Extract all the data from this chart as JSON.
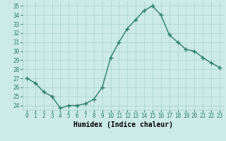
{
  "x": [
    0,
    1,
    2,
    3,
    4,
    5,
    6,
    7,
    8,
    9,
    10,
    11,
    12,
    13,
    14,
    15,
    16,
    17,
    18,
    19,
    20,
    21,
    22,
    23
  ],
  "y": [
    27.0,
    26.5,
    25.5,
    25.0,
    23.7,
    24.0,
    24.0,
    24.2,
    24.7,
    26.0,
    29.3,
    31.0,
    32.5,
    33.5,
    34.5,
    35.0,
    34.0,
    31.8,
    31.0,
    30.2,
    30.0,
    29.3,
    28.7,
    28.2
  ],
  "line_color": "#2e7d6e",
  "marker": "+",
  "markersize": 4,
  "linewidth": 1.0,
  "xlabel": "Humidex (Indice chaleur)",
  "xlim": [
    -0.5,
    23.5
  ],
  "ylim": [
    23.5,
    35.5
  ],
  "yticks": [
    24,
    25,
    26,
    27,
    28,
    29,
    30,
    31,
    32,
    33,
    34,
    35
  ],
  "xticks": [
    0,
    1,
    2,
    3,
    4,
    5,
    6,
    7,
    8,
    9,
    10,
    11,
    12,
    13,
    14,
    15,
    16,
    17,
    18,
    19,
    20,
    21,
    22,
    23
  ],
  "bg_color": "#cceae7",
  "grid_color": "#aad4d0",
  "tick_label_fontsize": 5.5,
  "xlabel_fontsize": 7.0,
  "font_family": "monospace"
}
